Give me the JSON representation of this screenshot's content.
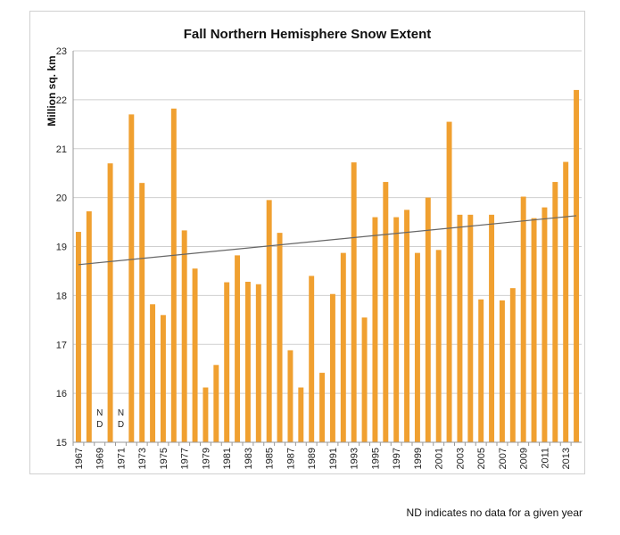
{
  "chart_data": {
    "type": "bar",
    "title": "Fall Northern Hemisphere Snow Extent",
    "ylabel": "Million sq. km",
    "xlabel": "",
    "ylim": [
      15,
      23
    ],
    "yticks": [
      15,
      16,
      17,
      18,
      19,
      20,
      21,
      22,
      23
    ],
    "grid": true,
    "bar_color": "#f0a030",
    "trendline_color": "#666666",
    "trendline": {
      "start": [
        1967,
        18.63
      ],
      "end": [
        2014,
        19.63
      ]
    },
    "x_tick_labels": [
      "1967",
      "1969",
      "1971",
      "1973",
      "1975",
      "1977",
      "1979",
      "1981",
      "1983",
      "1985",
      "1987",
      "1989",
      "1991",
      "1993",
      "1995",
      "1997",
      "1999",
      "2001",
      "2003",
      "2005",
      "2007",
      "2009",
      "2011",
      "2013"
    ],
    "missing_label_lines": [
      "N",
      "D"
    ],
    "categories": [
      1967,
      1968,
      1969,
      1970,
      1971,
      1972,
      1973,
      1974,
      1975,
      1976,
      1977,
      1978,
      1979,
      1980,
      1981,
      1982,
      1983,
      1984,
      1985,
      1986,
      1987,
      1988,
      1989,
      1990,
      1991,
      1992,
      1993,
      1994,
      1995,
      1996,
      1997,
      1998,
      1999,
      2000,
      2001,
      2002,
      2003,
      2004,
      2005,
      2006,
      2007,
      2008,
      2009,
      2010,
      2011,
      2012,
      2013,
      2014
    ],
    "values": [
      19.3,
      19.72,
      null,
      20.7,
      null,
      21.7,
      20.3,
      17.82,
      17.6,
      21.82,
      19.33,
      18.55,
      16.12,
      16.58,
      18.27,
      18.82,
      18.28,
      18.23,
      19.95,
      19.28,
      16.88,
      16.12,
      18.4,
      16.42,
      18.03,
      18.87,
      20.72,
      17.55,
      19.6,
      20.32,
      19.6,
      19.75,
      18.87,
      20.0,
      18.93,
      21.55,
      19.65,
      19.65,
      17.92,
      19.65,
      17.9,
      18.15,
      20.02,
      19.58,
      19.8,
      20.32,
      20.73,
      22.2
    ]
  },
  "footnote": "ND indicates no data for a given year"
}
